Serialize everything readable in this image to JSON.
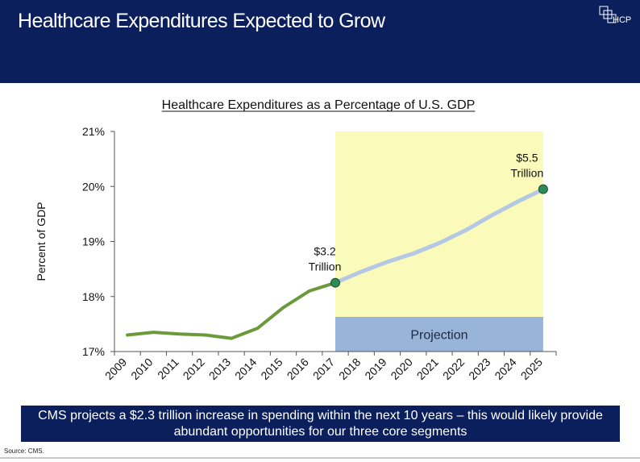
{
  "header": {
    "title": "Healthcare Expenditures Expected to Grow",
    "logo_text": "HCP"
  },
  "chart_data": {
    "type": "line",
    "title": "Healthcare Expenditures as a Percentage of U.S. GDP",
    "ylabel": "Percent of GDP",
    "xlabel": "",
    "categories": [
      "2009",
      "2010",
      "2011",
      "2012",
      "2013",
      "2014",
      "2015",
      "2016",
      "2017",
      "2018",
      "2019",
      "2020",
      "2021",
      "2022",
      "2023",
      "2024",
      "2025"
    ],
    "values": [
      17.3,
      17.35,
      17.32,
      17.3,
      17.24,
      17.42,
      17.8,
      18.1,
      18.25,
      18.45,
      18.63,
      18.78,
      18.97,
      19.2,
      19.47,
      19.72,
      19.95
    ],
    "ylim": [
      17,
      21
    ],
    "yticks": [
      17,
      18,
      19,
      20,
      21
    ],
    "ytick_labels": [
      "17%",
      "18%",
      "19%",
      "20%",
      "21%"
    ],
    "actual_color": "#6a9a3a",
    "projection_color": "#b4c8e6",
    "projection": {
      "start": "2017",
      "end": "2025",
      "label": "Projection",
      "fill": "#fafaba",
      "label_fill": "#98b4d8"
    },
    "annotations": [
      {
        "x": "2017",
        "y": 18.25,
        "line1": "$3.2",
        "line2": "Trillion"
      },
      {
        "x": "2025",
        "y": 19.95,
        "line1": "$5.5",
        "line2": "Trillion"
      }
    ],
    "marker_color": "#2e8b57"
  },
  "banner": {
    "text": "CMS projects a $2.3 trillion increase in spending within the next 10 years – this would likely provide abundant opportunities for our three core segments"
  },
  "source": "Source:  CMS."
}
